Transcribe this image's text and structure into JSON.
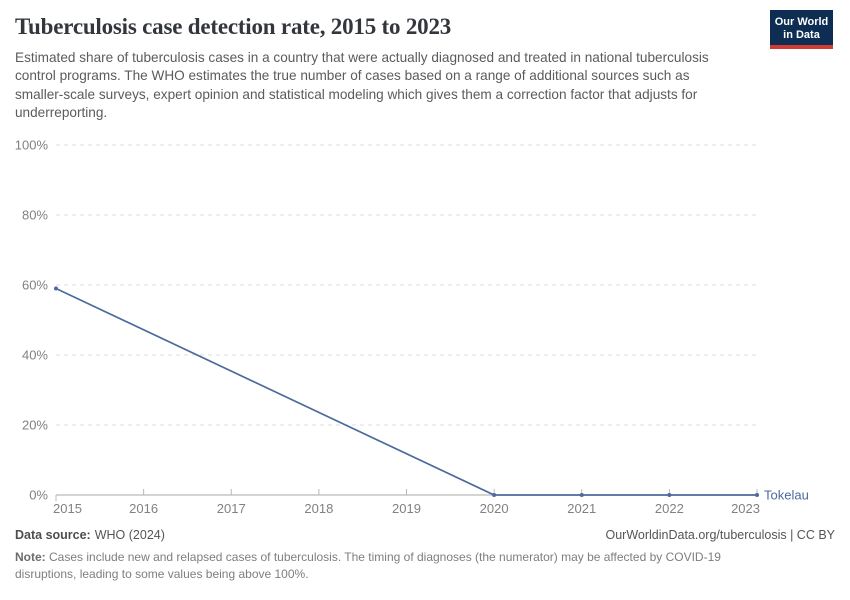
{
  "header": {
    "title": "Tuberculosis case detection rate, 2015 to 2023",
    "subtitle": "Estimated share of tuberculosis cases in a country that were actually diagnosed and treated in national tuberculosis control programs. The WHO estimates the true number of cases based on a range of additional sources such as smaller-scale surveys, expert opinion and statistical modeling which gives them a correction factor that adjusts for underreporting.",
    "logo": {
      "line1": "Our World",
      "line2": "in Data",
      "bg_color": "#0d2d52",
      "bar_color": "#cf3a33"
    }
  },
  "chart_data": {
    "type": "line",
    "title": "Tuberculosis case detection rate, 2015 to 2023",
    "xlabel": "",
    "ylabel": "",
    "xlim": [
      2015,
      2023
    ],
    "ylim": [
      0,
      100
    ],
    "x_ticks": [
      2015,
      2016,
      2017,
      2018,
      2019,
      2020,
      2021,
      2022,
      2023
    ],
    "y_ticks": [
      0,
      20,
      40,
      60,
      80,
      100
    ],
    "y_tick_suffix": "%",
    "grid": "horizontal-dashed",
    "legend_position": "end-of-line-label",
    "series": [
      {
        "name": "Tokelau",
        "color": "#4C6A9C",
        "points": [
          [
            2015,
            59
          ],
          [
            2020,
            0
          ],
          [
            2021,
            0
          ],
          [
            2022,
            0
          ],
          [
            2023,
            0
          ]
        ]
      }
    ]
  },
  "colors": {
    "line": "#4C6A9C",
    "grid": "#dcdcdc",
    "axis": "#a8a8a8",
    "tick": "#b8b8b8",
    "tick_label": "#818181"
  },
  "footer": {
    "source_label": "Data source:",
    "source_value": "WHO (2024)",
    "attribution": "OurWorldinData.org/tuberculosis | CC BY",
    "note_label": "Note:",
    "note_value": "Cases include new and relapsed cases of tuberculosis. The timing of diagnoses (the numerator) may be affected by COVID-19 disruptions, leading to some values being above 100%."
  }
}
